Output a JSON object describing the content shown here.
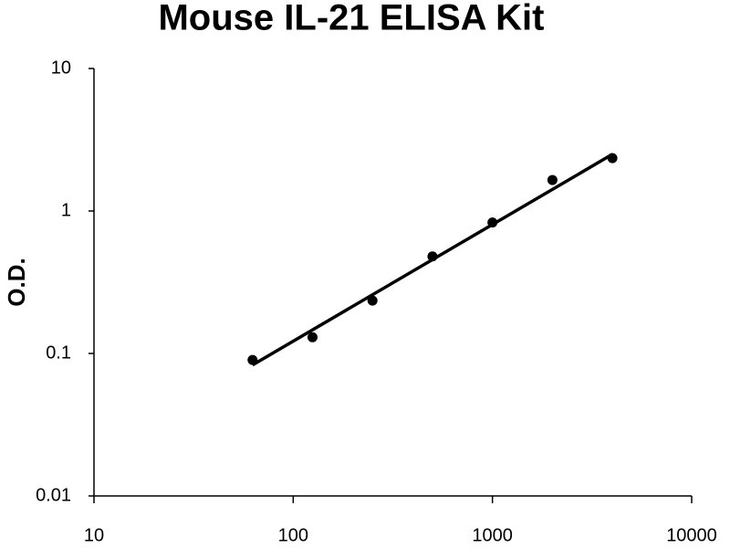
{
  "chart_data": {
    "type": "scatter",
    "title": "Mouse IL-21 ELISA Kit",
    "y_label": "O.D.",
    "x": [
      62.5,
      125,
      250,
      500,
      1000,
      2000,
      4000
    ],
    "values": [
      0.09,
      0.13,
      0.235,
      0.48,
      0.83,
      1.65,
      2.35
    ],
    "color": "#000000",
    "fit": {
      "x": [
        62.5,
        4000
      ],
      "values": [
        0.083,
        2.5
      ]
    },
    "xlim": [
      10,
      10000
    ],
    "ylim": [
      0.01,
      10
    ],
    "xticks": [
      10,
      100,
      1000,
      10000
    ],
    "yticks": [
      0.01,
      0.1,
      1,
      10
    ],
    "xscale": "log",
    "yscale": "log",
    "grid": false
  }
}
